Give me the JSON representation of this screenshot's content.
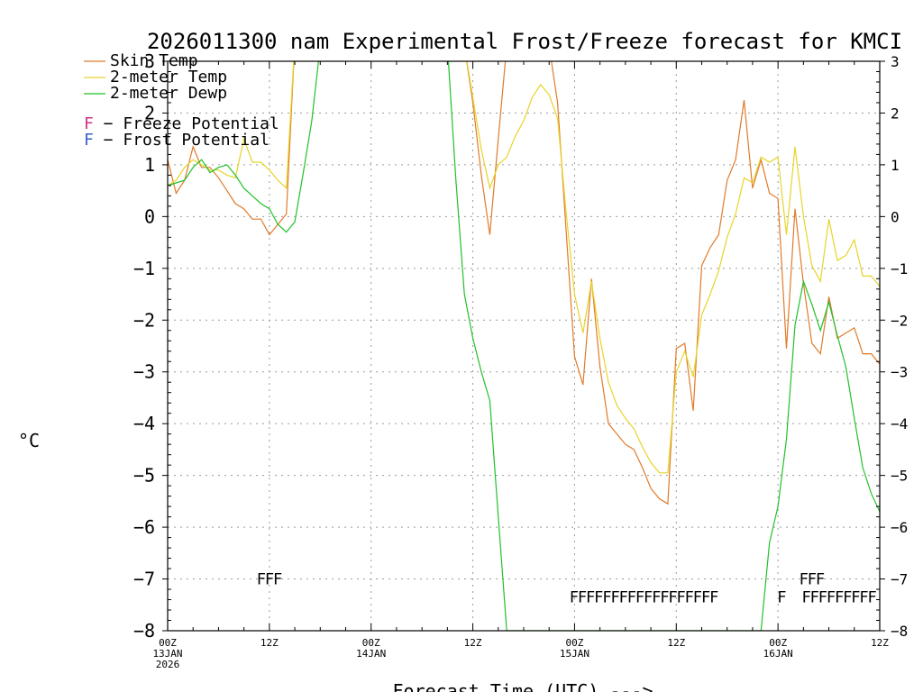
{
  "chart_data": {
    "type": "line",
    "title": "2026011300 nam Experimental Frost/Freeze forecast for KMCI",
    "xlabel": "Forecast Time (UTC) --->",
    "ylabel": "°C",
    "ylim": [
      -8,
      3
    ],
    "xlim": [
      0,
      84
    ],
    "x_unit": "hours since 2026-01-13 00Z",
    "yticks": [
      3,
      2,
      1,
      0,
      -1,
      -2,
      -3,
      -4,
      -5,
      -6,
      -7,
      -8
    ],
    "ytick_labels": [
      "3",
      "2",
      "1",
      "0",
      "−1",
      "−2",
      "−3",
      "−4",
      "−5",
      "−6",
      "−7",
      "−8"
    ],
    "xticks": [
      {
        "x": 0,
        "line1": "00Z",
        "line2": "13JAN",
        "line3": "2026"
      },
      {
        "x": 12,
        "line1": "12Z",
        "line2": "",
        "line3": ""
      },
      {
        "x": 24,
        "line1": "00Z",
        "line2": "14JAN",
        "line3": ""
      },
      {
        "x": 36,
        "line1": "12Z",
        "line2": "",
        "line3": ""
      },
      {
        "x": 48,
        "line1": "00Z",
        "line2": "15JAN",
        "line3": ""
      },
      {
        "x": 60,
        "line1": "12Z",
        "line2": "",
        "line3": ""
      },
      {
        "x": 72,
        "line1": "00Z",
        "line2": "16JAN",
        "line3": ""
      },
      {
        "x": 84,
        "line1": "12Z",
        "line2": "",
        "line3": ""
      }
    ],
    "grid": true,
    "legend_position": "top-left",
    "series": [
      {
        "name": "Skin Temp",
        "color": "#e07b2a",
        "points": [
          [
            0,
            1.1
          ],
          [
            1,
            0.45
          ],
          [
            2,
            0.7
          ],
          [
            3,
            1.35
          ],
          [
            4,
            0.95
          ],
          [
            5,
            0.95
          ],
          [
            6,
            0.75
          ],
          [
            7,
            0.5
          ],
          [
            8,
            0.25
          ],
          [
            9,
            0.15
          ],
          [
            10,
            -0.05
          ],
          [
            11,
            -0.05
          ],
          [
            12,
            -0.35
          ],
          [
            13,
            -0.15
          ],
          [
            14,
            0.05
          ],
          [
            15,
            3.4
          ],
          [
            35,
            3.3
          ],
          [
            36,
            2.2
          ],
          [
            37,
            0.8
          ],
          [
            38,
            -0.35
          ],
          [
            39,
            1.5
          ],
          [
            40,
            3.3
          ],
          [
            45,
            3.3
          ],
          [
            46,
            2.2
          ],
          [
            47,
            -0.25
          ],
          [
            48,
            -2.7
          ],
          [
            49,
            -3.25
          ],
          [
            50,
            -1.2
          ],
          [
            51,
            -2.9
          ],
          [
            52,
            -4.0
          ],
          [
            53,
            -4.2
          ],
          [
            54,
            -4.4
          ],
          [
            55,
            -4.5
          ],
          [
            56,
            -4.85
          ],
          [
            57,
            -5.25
          ],
          [
            58,
            -5.45
          ],
          [
            59,
            -5.55
          ],
          [
            60,
            -2.55
          ],
          [
            61,
            -2.45
          ],
          [
            62,
            -3.75
          ],
          [
            63,
            -0.95
          ],
          [
            64,
            -0.6
          ],
          [
            65,
            -0.35
          ],
          [
            66,
            0.7
          ],
          [
            67,
            1.1
          ],
          [
            68,
            2.25
          ],
          [
            69,
            0.55
          ],
          [
            70,
            1.1
          ],
          [
            71,
            0.45
          ],
          [
            72,
            0.35
          ],
          [
            73,
            -2.55
          ],
          [
            74,
            0.15
          ],
          [
            75,
            -1.3
          ],
          [
            76,
            -2.45
          ],
          [
            77,
            -2.65
          ],
          [
            78,
            -1.55
          ],
          [
            79,
            -2.35
          ],
          [
            80,
            -2.25
          ],
          [
            81,
            -2.15
          ],
          [
            82,
            -2.65
          ],
          [
            83,
            -2.65
          ],
          [
            84,
            -2.85
          ]
        ]
      },
      {
        "name": "2-meter Temp",
        "color": "#e6d42a",
        "points": [
          [
            0,
            0.6
          ],
          [
            1,
            0.7
          ],
          [
            2,
            0.95
          ],
          [
            3,
            1.1
          ],
          [
            4,
            1.0
          ],
          [
            5,
            0.9
          ],
          [
            6,
            0.9
          ],
          [
            7,
            0.8
          ],
          [
            8,
            0.75
          ],
          [
            9,
            1.5
          ],
          [
            10,
            1.05
          ],
          [
            11,
            1.05
          ],
          [
            12,
            0.9
          ],
          [
            13,
            0.7
          ],
          [
            14,
            0.55
          ],
          [
            15,
            3.4
          ],
          [
            35,
            3.3
          ],
          [
            36,
            2.3
          ],
          [
            37,
            1.3
          ],
          [
            38,
            0.55
          ],
          [
            39,
            1.0
          ],
          [
            40,
            1.15
          ],
          [
            41,
            1.55
          ],
          [
            42,
            1.85
          ],
          [
            43,
            2.3
          ],
          [
            44,
            2.55
          ],
          [
            45,
            2.35
          ],
          [
            46,
            1.9
          ],
          [
            47,
            0.1
          ],
          [
            48,
            -1.5
          ],
          [
            49,
            -2.25
          ],
          [
            50,
            -1.25
          ],
          [
            51,
            -2.35
          ],
          [
            52,
            -3.2
          ],
          [
            53,
            -3.65
          ],
          [
            54,
            -3.9
          ],
          [
            55,
            -4.1
          ],
          [
            56,
            -4.45
          ],
          [
            57,
            -4.75
          ],
          [
            58,
            -4.95
          ],
          [
            59,
            -4.95
          ],
          [
            60,
            -3.0
          ],
          [
            61,
            -2.6
          ],
          [
            62,
            -3.1
          ],
          [
            63,
            -1.9
          ],
          [
            64,
            -1.5
          ],
          [
            65,
            -1.05
          ],
          [
            66,
            -0.4
          ],
          [
            67,
            0.05
          ],
          [
            68,
            0.75
          ],
          [
            69,
            0.65
          ],
          [
            70,
            1.15
          ],
          [
            71,
            1.05
          ],
          [
            72,
            1.15
          ],
          [
            73,
            -0.35
          ],
          [
            74,
            1.35
          ],
          [
            75,
            0.0
          ],
          [
            76,
            -0.95
          ],
          [
            77,
            -1.25
          ],
          [
            78,
            -0.05
          ],
          [
            79,
            -0.85
          ],
          [
            80,
            -0.75
          ],
          [
            81,
            -0.45
          ],
          [
            82,
            -1.15
          ],
          [
            83,
            -1.15
          ],
          [
            84,
            -1.35
          ]
        ]
      },
      {
        "name": "2-meter Dewp",
        "color": "#22c12a",
        "points": [
          [
            0,
            0.6
          ],
          [
            1,
            0.65
          ],
          [
            2,
            0.7
          ],
          [
            3,
            0.95
          ],
          [
            4,
            1.1
          ],
          [
            5,
            0.85
          ],
          [
            6,
            0.95
          ],
          [
            7,
            1.0
          ],
          [
            8,
            0.8
          ],
          [
            9,
            0.55
          ],
          [
            10,
            0.4
          ],
          [
            11,
            0.25
          ],
          [
            12,
            0.15
          ],
          [
            13,
            -0.15
          ],
          [
            14,
            -0.3
          ],
          [
            15,
            -0.1
          ],
          [
            16,
            0.85
          ],
          [
            17,
            1.85
          ],
          [
            18,
            3.3
          ],
          [
            33,
            3.3
          ],
          [
            34,
            0.7
          ],
          [
            35,
            -1.5
          ],
          [
            36,
            -2.35
          ],
          [
            37,
            -3.0
          ],
          [
            38,
            -3.55
          ],
          [
            39,
            -5.8
          ],
          [
            40,
            -8.0
          ],
          [
            70,
            -8.0
          ],
          [
            71,
            -6.3
          ],
          [
            72,
            -5.6
          ],
          [
            73,
            -4.3
          ],
          [
            74,
            -2.1
          ],
          [
            75,
            -1.25
          ],
          [
            76,
            -1.7
          ],
          [
            77,
            -2.2
          ],
          [
            78,
            -1.65
          ],
          [
            79,
            -2.3
          ],
          [
            80,
            -2.9
          ],
          [
            81,
            -3.9
          ],
          [
            82,
            -4.85
          ],
          [
            83,
            -5.35
          ],
          [
            84,
            -5.7
          ]
        ]
      }
    ],
    "potential_legend": [
      {
        "letter": "F",
        "text": " − Freeze Potential",
        "color": "#d0338a"
      },
      {
        "letter": "F",
        "text": " − Frost Potential",
        "color": "#3a5fcd"
      }
    ],
    "frost_flags": {
      "color": "#3a5fcd",
      "y": -7.1,
      "runs": [
        {
          "text": "FFF",
          "x_start": 10.5
        },
        {
          "text": "FFF",
          "x_start": 74.5
        }
      ]
    },
    "freeze_flags": {
      "color": "#d0338a",
      "y": -7.45,
      "runs": [
        {
          "text": "FFFFFFFFFFFFFFFFFF",
          "x_start": 47.4
        },
        {
          "text": "F",
          "x_start": 71.9
        },
        {
          "text": "FFFFFFFFF",
          "x_start": 74.8
        }
      ]
    }
  }
}
